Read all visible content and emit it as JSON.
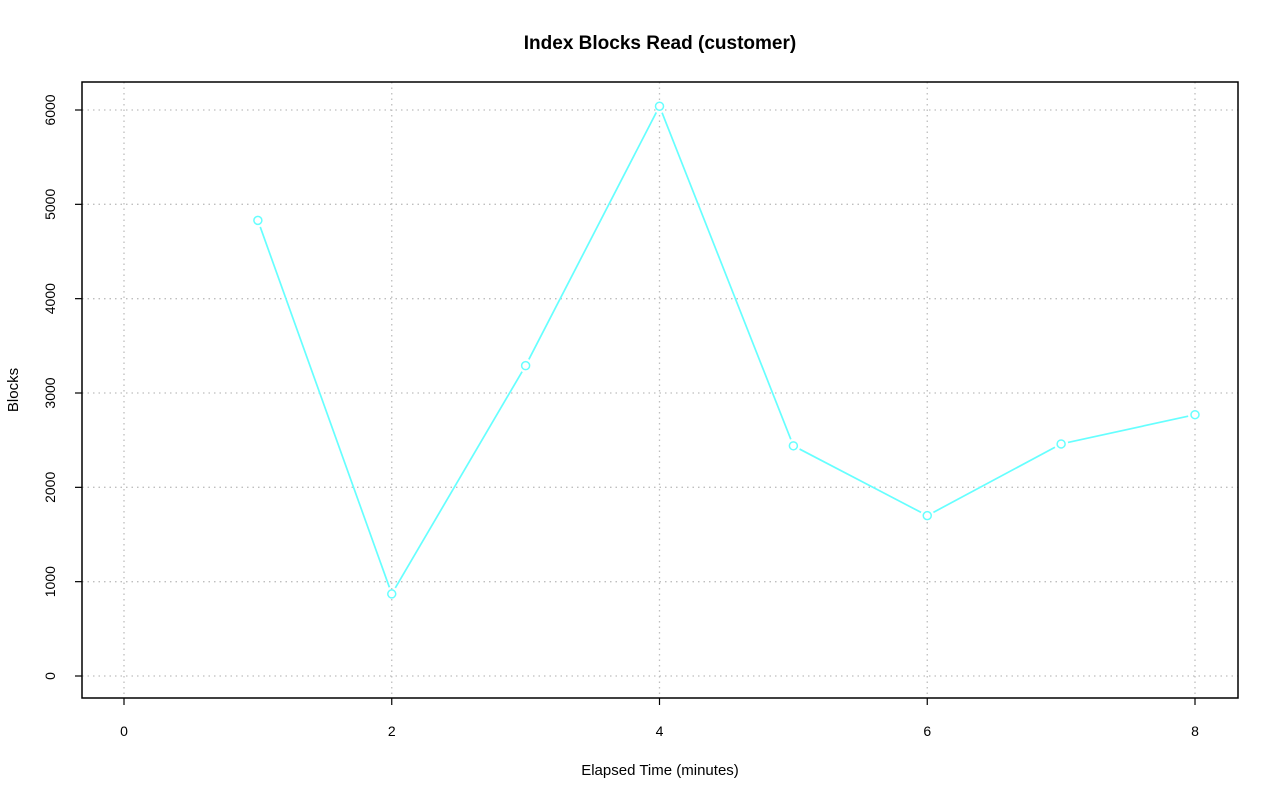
{
  "chart_data": {
    "type": "line",
    "title": "Index Blocks Read (customer)",
    "xlabel": "Elapsed Time (minutes)",
    "ylabel": "Blocks",
    "xlim": [
      0,
      8
    ],
    "ylim": [
      0,
      6000
    ],
    "x_ticks": [
      0,
      2,
      4,
      6,
      8
    ],
    "y_ticks": [
      0,
      1000,
      2000,
      3000,
      4000,
      5000,
      6000
    ],
    "x_gridlines": [
      0,
      2,
      4,
      6,
      8
    ],
    "y_gridlines": [
      0,
      1000,
      2000,
      3000,
      4000,
      5000,
      6000
    ],
    "grid": true,
    "series": [
      {
        "color": "#66ffff",
        "marker": "open-circle",
        "x": [
          1,
          2,
          3,
          4,
          5,
          6,
          7,
          8
        ],
        "y": [
          4830,
          870,
          3290,
          6040,
          2440,
          1700,
          2460,
          2770
        ]
      }
    ]
  }
}
